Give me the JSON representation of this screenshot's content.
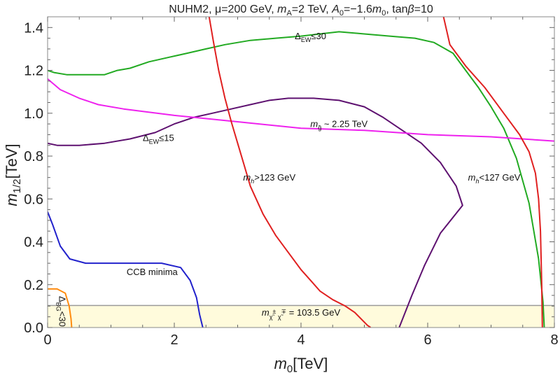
{
  "chart_data": {
    "type": "line",
    "title": "NUHM2, μ=200 GeV, mA=2 TeV, A0=−1.6m0, tanβ=10",
    "xlabel": "m0[TeV]",
    "ylabel": "m1/2[TeV]",
    "xlim": [
      0,
      8
    ],
    "ylim": [
      0,
      1.45
    ],
    "x_ticks": [
      0,
      2,
      4,
      6,
      8
    ],
    "y_ticks": [
      0.0,
      0.2,
      0.4,
      0.6,
      0.8,
      1.0,
      1.2,
      1.4
    ],
    "x_tick_labels": [
      "0",
      "2",
      "4",
      "6",
      "8"
    ],
    "y_tick_labels": [
      "0.0",
      "0.2",
      "0.4",
      "0.6",
      "0.8",
      "1.0",
      "1.2",
      "1.4"
    ],
    "grid": false,
    "excluded_band": {
      "ymax": 0.103,
      "color": "#FFFBDC",
      "edge_color": "#999999",
      "label": "m χ̃± χ̃∓ = 103.5 GeV"
    },
    "series": [
      {
        "name": "ΔEW≤30",
        "color": "#22AA22",
        "x": [
          0,
          0.1,
          0.3,
          0.6,
          0.9,
          1.1,
          1.3,
          1.6,
          1.9,
          2.2,
          2.5,
          2.8,
          3.2,
          3.6,
          4.0,
          4.3,
          4.6,
          5.0,
          5.4,
          5.8,
          6.1,
          6.4,
          6.6,
          6.8,
          7.0,
          7.2,
          7.4,
          7.6,
          7.75,
          7.82,
          7.84
        ],
        "y": [
          1.2,
          1.19,
          1.18,
          1.18,
          1.18,
          1.2,
          1.21,
          1.24,
          1.26,
          1.28,
          1.3,
          1.32,
          1.34,
          1.35,
          1.36,
          1.37,
          1.38,
          1.37,
          1.36,
          1.35,
          1.33,
          1.28,
          1.2,
          1.12,
          1.03,
          0.93,
          0.79,
          0.58,
          0.32,
          0.12,
          0.0
        ]
      },
      {
        "name": "ΔEW≤15",
        "color": "#5E1170",
        "x": [
          0,
          0.15,
          0.5,
          0.9,
          1.3,
          1.7,
          2.0,
          2.3,
          2.6,
          2.9,
          3.2,
          3.5,
          3.8,
          4.2,
          4.6,
          5.0,
          5.3,
          5.6,
          5.9,
          6.2,
          6.45,
          6.55,
          6.2,
          5.95,
          5.75,
          5.55
        ],
        "y": [
          0.86,
          0.85,
          0.85,
          0.86,
          0.88,
          0.91,
          0.95,
          0.98,
          1.0,
          1.02,
          1.04,
          1.06,
          1.07,
          1.07,
          1.06,
          1.03,
          0.98,
          0.92,
          0.86,
          0.77,
          0.66,
          0.57,
          0.44,
          0.29,
          0.15,
          0.0
        ]
      },
      {
        "name": "mg̃ ~ 2.25 TeV",
        "color": "#EE22EE",
        "x": [
          0,
          0.2,
          0.5,
          0.8,
          1.2,
          2.0,
          3.0,
          4.0,
          5.0,
          6.0,
          7.0,
          8.0
        ],
        "y": [
          1.16,
          1.11,
          1.07,
          1.04,
          1.02,
          0.99,
          0.96,
          0.93,
          0.92,
          0.9,
          0.89,
          0.87
        ]
      },
      {
        "name": "mh>123 GeV",
        "color": "#E02020",
        "x": [
          2.55,
          2.62,
          2.7,
          2.8,
          2.9,
          3.0,
          3.1,
          3.2,
          3.4,
          3.6,
          3.8,
          4.0,
          4.15,
          4.3,
          4.5,
          4.7,
          4.85,
          4.95,
          5.05,
          5.1
        ],
        "y": [
          1.45,
          1.33,
          1.2,
          1.07,
          0.96,
          0.86,
          0.76,
          0.66,
          0.53,
          0.43,
          0.35,
          0.27,
          0.22,
          0.17,
          0.13,
          0.1,
          0.07,
          0.04,
          0.01,
          0.0
        ]
      },
      {
        "name": "mh<127 GeV",
        "color": "#E02020",
        "x": [
          6.25,
          6.35,
          6.6,
          6.9,
          7.2,
          7.45,
          7.6,
          7.7,
          7.75,
          7.78,
          7.8,
          7.81
        ],
        "y": [
          1.45,
          1.32,
          1.22,
          1.12,
          1.0,
          0.9,
          0.82,
          0.72,
          0.6,
          0.45,
          0.2,
          0.0
        ]
      },
      {
        "name": "CCB minima",
        "color": "#2222CC",
        "x": [
          0,
          0.08,
          0.2,
          0.35,
          0.6,
          1.0,
          1.4,
          1.8,
          2.1,
          2.25,
          2.35,
          2.4,
          2.45
        ],
        "y": [
          0.54,
          0.48,
          0.38,
          0.32,
          0.3,
          0.3,
          0.3,
          0.3,
          0.28,
          0.22,
          0.14,
          0.06,
          0.0
        ]
      },
      {
        "name": "ΔBG<30",
        "color": "#FF8C10",
        "x": [
          0,
          0.15,
          0.28,
          0.34,
          0.37,
          0.38
        ],
        "y": [
          0.18,
          0.18,
          0.16,
          0.1,
          0.04,
          0.0
        ]
      }
    ],
    "annotations": [
      {
        "text": "ΔEW≤30",
        "x": 4.15,
        "y": 1.345
      },
      {
        "text": "ΔEW≤15",
        "x": 1.75,
        "y": 0.87
      },
      {
        "text": "mg̃ ~ 2.25 TeV",
        "x": 4.6,
        "y": 0.935
      },
      {
        "text": "mh>123 GeV",
        "x": 3.5,
        "y": 0.685
      },
      {
        "text": "mh<127 GeV",
        "x": 7.05,
        "y": 0.685
      },
      {
        "text": "CCB minima",
        "x": 1.65,
        "y": 0.245
      },
      {
        "text": "ΔBG<30",
        "x": 0.18,
        "y": 0.075
      },
      {
        "text": "m χ̃± χ̃∓ = 103.5 GeV",
        "x": 4.0,
        "y": 0.055
      }
    ]
  }
}
